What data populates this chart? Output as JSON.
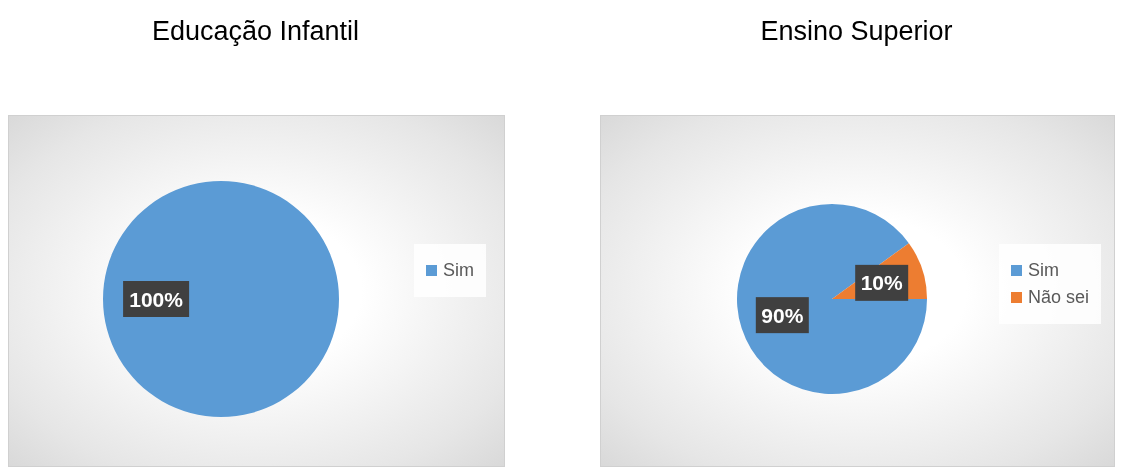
{
  "chart_data": [
    {
      "type": "pie",
      "title": "Educação Infantil",
      "categories": [
        "Sim"
      ],
      "values": [
        100
      ],
      "colors": [
        "#5b9bd5"
      ],
      "value_labels": [
        "100%"
      ],
      "legend": "right"
    },
    {
      "type": "pie",
      "title": "Ensino Superior",
      "categories": [
        "Sim",
        "Não sei"
      ],
      "values": [
        90,
        10
      ],
      "colors": [
        "#5b9bd5",
        "#ed7d31"
      ],
      "value_labels": [
        "90%",
        "10%"
      ],
      "legend": "right"
    }
  ]
}
